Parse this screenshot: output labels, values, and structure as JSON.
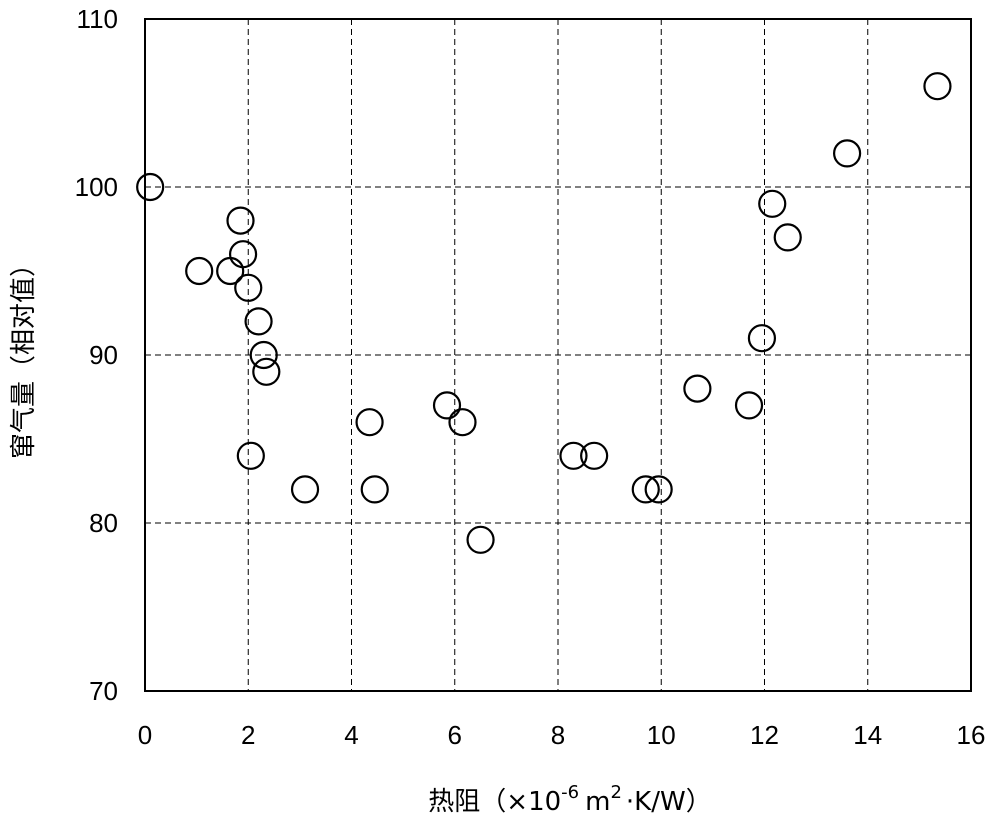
{
  "chart_data": {
    "type": "scatter",
    "title": "",
    "xlabel_main": "热阻（",
    "xlabel_unit_prefix": "×10",
    "xlabel_exp": "-6",
    "xlabel_unit_mid": "m",
    "xlabel_exp2": "2",
    "xlabel_unit_suffix": "·K/W）",
    "ylabel": "窜气量（相对值）",
    "xlim": [
      0,
      16
    ],
    "ylim": [
      70,
      110
    ],
    "xticks": [
      0,
      2,
      4,
      6,
      8,
      10,
      12,
      14,
      16
    ],
    "yticks": [
      70,
      80,
      90,
      100,
      110
    ],
    "grid": true,
    "marker": "open-circle",
    "points": [
      {
        "x": 0.1,
        "y": 100
      },
      {
        "x": 1.05,
        "y": 95
      },
      {
        "x": 1.65,
        "y": 95
      },
      {
        "x": 1.85,
        "y": 98
      },
      {
        "x": 1.9,
        "y": 96
      },
      {
        "x": 2.0,
        "y": 94
      },
      {
        "x": 2.05,
        "y": 84
      },
      {
        "x": 2.2,
        "y": 92
      },
      {
        "x": 2.3,
        "y": 90
      },
      {
        "x": 2.35,
        "y": 89
      },
      {
        "x": 3.1,
        "y": 82
      },
      {
        "x": 4.35,
        "y": 86
      },
      {
        "x": 4.45,
        "y": 82
      },
      {
        "x": 5.85,
        "y": 87
      },
      {
        "x": 6.15,
        "y": 86
      },
      {
        "x": 6.5,
        "y": 79
      },
      {
        "x": 8.3,
        "y": 84
      },
      {
        "x": 8.7,
        "y": 84
      },
      {
        "x": 9.7,
        "y": 82
      },
      {
        "x": 9.95,
        "y": 82
      },
      {
        "x": 10.7,
        "y": 88
      },
      {
        "x": 11.7,
        "y": 87
      },
      {
        "x": 11.95,
        "y": 91
      },
      {
        "x": 12.15,
        "y": 99
      },
      {
        "x": 12.45,
        "y": 97
      },
      {
        "x": 13.6,
        "y": 102
      },
      {
        "x": 15.35,
        "y": 106
      }
    ]
  }
}
